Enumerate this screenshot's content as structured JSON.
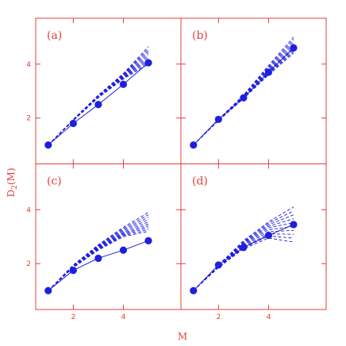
{
  "chart_data": [
    {
      "panel": "(a)",
      "type": "line",
      "xlim": [
        0.5,
        6.3
      ],
      "ylim": [
        0.3,
        5.7
      ],
      "x": [
        1,
        2,
        3,
        4,
        5
      ],
      "measured": [
        1.0,
        1.8,
        2.5,
        3.25,
        4.05
      ],
      "fan": [
        [
          1.0,
          1.95,
          2.85,
          3.65,
          4.65
        ],
        [
          1.0,
          1.92,
          2.8,
          3.55,
          4.3
        ],
        [
          1.0,
          1.9,
          2.75,
          3.45,
          4.0
        ]
      ]
    },
    {
      "panel": "(b)",
      "type": "line",
      "xlim": [
        0.5,
        6.3
      ],
      "ylim": [
        0.3,
        5.7
      ],
      "x": [
        1,
        2,
        3,
        4,
        5
      ],
      "measured": [
        1.0,
        1.95,
        2.75,
        3.7,
        4.6
      ],
      "fan": [
        [
          1.0,
          1.95,
          2.85,
          3.95,
          5.0
        ],
        [
          1.0,
          1.93,
          2.78,
          3.75,
          4.65
        ],
        [
          1.0,
          1.9,
          2.72,
          3.6,
          4.4
        ]
      ]
    },
    {
      "panel": "(c)",
      "type": "line",
      "xlim": [
        0.5,
        6.3
      ],
      "ylim": [
        0.3,
        5.7
      ],
      "x": [
        1,
        2,
        3,
        4,
        5
      ],
      "measured": [
        1.0,
        1.75,
        2.2,
        2.5,
        2.85
      ],
      "fan": [
        [
          1.0,
          1.95,
          2.7,
          3.35,
          3.9
        ],
        [
          1.0,
          1.9,
          2.6,
          3.15,
          3.5
        ],
        [
          1.0,
          1.85,
          2.5,
          3.0,
          3.2
        ]
      ]
    },
    {
      "panel": "(d)",
      "type": "line",
      "xlim": [
        0.5,
        6.3
      ],
      "ylim": [
        0.3,
        5.7
      ],
      "x": [
        1,
        2,
        3,
        4,
        5
      ],
      "measured": [
        1.0,
        1.95,
        2.6,
        3.05,
        3.45
      ],
      "fan": [
        [
          1.0,
          1.95,
          2.85,
          3.55,
          4.1
        ],
        [
          1.0,
          1.9,
          2.7,
          3.3,
          3.45
        ],
        [
          1.0,
          1.85,
          2.55,
          2.95,
          2.8
        ]
      ]
    }
  ],
  "axes": {
    "xlabel": "M",
    "ylabel": "D",
    "ylabel_sub": "2",
    "ylabel_tail": "(M)",
    "xticks": [
      2,
      4
    ],
    "yticks": [
      2,
      4
    ],
    "xtick_labels": [
      "2",
      "4"
    ],
    "ytick_labels": [
      "2",
      "4"
    ]
  },
  "colors": {
    "frame": "#e83c3c",
    "series": "#1f1fe0"
  }
}
